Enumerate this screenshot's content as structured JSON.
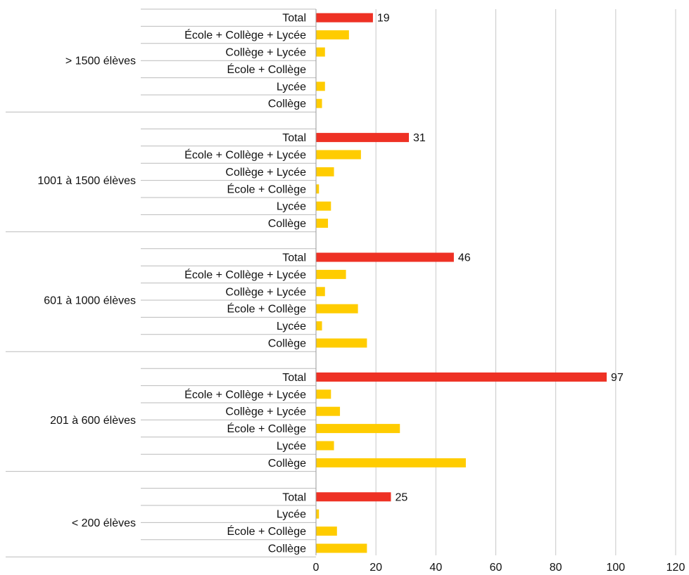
{
  "chart_data": {
    "type": "bar",
    "orientation": "horizontal",
    "title": "",
    "xlabel": "",
    "ylabel": "",
    "xlim": [
      0,
      120
    ],
    "xticks": [
      0,
      20,
      40,
      60,
      80,
      100,
      120
    ],
    "grid": true,
    "colors": {
      "total": "#ee3124",
      "category": "#ffcc00",
      "grid": "#c8c8c8",
      "separator": "#bbbbbb"
    },
    "groups": [
      {
        "name": "> 1500 élèves",
        "bars": [
          {
            "label": "Total",
            "value": 19,
            "kind": "total",
            "value_label": "19"
          },
          {
            "label": "École + Collège + Lycée",
            "value": 11,
            "kind": "category"
          },
          {
            "label": "Collège + Lycée",
            "value": 3,
            "kind": "category"
          },
          {
            "label": "École + Collège",
            "value": 0,
            "kind": "category"
          },
          {
            "label": "Lycée",
            "value": 3,
            "kind": "category"
          },
          {
            "label": "Collège",
            "value": 2,
            "kind": "category"
          }
        ]
      },
      {
        "name": "1001 à 1500 élèves",
        "bars": [
          {
            "label": "Total",
            "value": 31,
            "kind": "total",
            "value_label": "31"
          },
          {
            "label": "École + Collège + Lycée",
            "value": 15,
            "kind": "category"
          },
          {
            "label": "Collège + Lycée",
            "value": 6,
            "kind": "category"
          },
          {
            "label": "École + Collège",
            "value": 1,
            "kind": "category"
          },
          {
            "label": "Lycée",
            "value": 5,
            "kind": "category"
          },
          {
            "label": "Collège",
            "value": 4,
            "kind": "category"
          }
        ]
      },
      {
        "name": "601 à 1000 élèves",
        "bars": [
          {
            "label": "Total",
            "value": 46,
            "kind": "total",
            "value_label": "46"
          },
          {
            "label": "École + Collège + Lycée",
            "value": 10,
            "kind": "category"
          },
          {
            "label": "Collège + Lycée",
            "value": 3,
            "kind": "category"
          },
          {
            "label": "École + Collège",
            "value": 14,
            "kind": "category"
          },
          {
            "label": "Lycée",
            "value": 2,
            "kind": "category"
          },
          {
            "label": "Collège",
            "value": 17,
            "kind": "category"
          }
        ]
      },
      {
        "name": "201 à 600 élèves",
        "bars": [
          {
            "label": "Total",
            "value": 97,
            "kind": "total",
            "value_label": "97"
          },
          {
            "label": "École + Collège + Lycée",
            "value": 5,
            "kind": "category"
          },
          {
            "label": "Collège + Lycée",
            "value": 8,
            "kind": "category"
          },
          {
            "label": "École + Collège",
            "value": 28,
            "kind": "category"
          },
          {
            "label": "Lycée",
            "value": 6,
            "kind": "category"
          },
          {
            "label": "Collège",
            "value": 50,
            "kind": "category"
          }
        ]
      },
      {
        "name": "< 200 élèves",
        "bars": [
          {
            "label": "Total",
            "value": 25,
            "kind": "total",
            "value_label": "25"
          },
          {
            "label": "Lycée",
            "value": 1,
            "kind": "category"
          },
          {
            "label": "École + Collège",
            "value": 7,
            "kind": "category"
          },
          {
            "label": "Collège",
            "value": 17,
            "kind": "category"
          }
        ]
      }
    ]
  }
}
